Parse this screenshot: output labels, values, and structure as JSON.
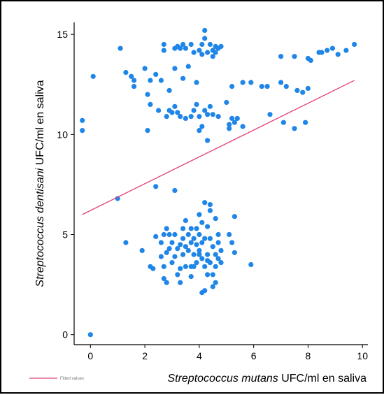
{
  "chart_data": {
    "type": "scatter",
    "title": "",
    "xlabel_italic": "Streptococcus mutans",
    "xlabel_rest": " UFC/ml en saliva",
    "ylabel_italic": "Streptococcus dentisani",
    "ylabel_rest": " UFC/ml en saliva",
    "xlim": [
      -0.6,
      10.2
    ],
    "ylim": [
      -0.5,
      15.6
    ],
    "xticks": [
      0,
      2,
      4,
      6,
      8,
      10
    ],
    "yticks": [
      0,
      5,
      10,
      15
    ],
    "grid": false,
    "legend_position": "bottom-left",
    "legend_label": "Fitted values",
    "point_color": "#1f86e8",
    "line_color": "#e0407a",
    "series": [
      {
        "type": "scatter",
        "points": [
          [
            0.0,
            0.0
          ],
          [
            -0.3,
            10.2
          ],
          [
            -0.3,
            10.7
          ],
          [
            0.1,
            12.9
          ],
          [
            1.0,
            6.8
          ],
          [
            1.1,
            14.3
          ],
          [
            1.3,
            13.1
          ],
          [
            1.5,
            12.9
          ],
          [
            1.6,
            12.4
          ],
          [
            1.6,
            12.7
          ],
          [
            2.0,
            13.3
          ],
          [
            2.1,
            12.0
          ],
          [
            2.1,
            10.2
          ],
          [
            2.2,
            12.7
          ],
          [
            2.2,
            11.5
          ],
          [
            2.4,
            7.4
          ],
          [
            2.4,
            13.0
          ],
          [
            2.5,
            11.2
          ],
          [
            2.6,
            12.7
          ],
          [
            2.7,
            14.5
          ],
          [
            2.7,
            14.2
          ],
          [
            2.8,
            10.9
          ],
          [
            2.9,
            11.2
          ],
          [
            2.9,
            12.2
          ],
          [
            3.0,
            11.1
          ],
          [
            3.1,
            11.4
          ],
          [
            3.1,
            14.3
          ],
          [
            3.1,
            13.3
          ],
          [
            3.2,
            14.4
          ],
          [
            3.2,
            11.1
          ],
          [
            3.3,
            14.3
          ],
          [
            3.3,
            10.9
          ],
          [
            3.4,
            12.8
          ],
          [
            3.4,
            14.5
          ],
          [
            3.5,
            10.8
          ],
          [
            3.5,
            14.3
          ],
          [
            3.6,
            13.4
          ],
          [
            3.7,
            14.5
          ],
          [
            3.7,
            10.9
          ],
          [
            3.8,
            11.2
          ],
          [
            3.8,
            14.1
          ],
          [
            3.9,
            12.6
          ],
          [
            3.9,
            11.5
          ],
          [
            4.0,
            14.2
          ],
          [
            4.0,
            10.9
          ],
          [
            4.0,
            10.2
          ],
          [
            4.1,
            14.5
          ],
          [
            4.1,
            10.4
          ],
          [
            4.1,
            14.0
          ],
          [
            4.2,
            14.8
          ],
          [
            4.2,
            11.2
          ],
          [
            4.2,
            15.2
          ],
          [
            4.3,
            14.1
          ],
          [
            4.3,
            11.0
          ],
          [
            4.3,
            9.7
          ],
          [
            4.4,
            14.5
          ],
          [
            4.4,
            11.4
          ],
          [
            4.5,
            13.9
          ],
          [
            4.5,
            14.2
          ],
          [
            4.5,
            11.0
          ],
          [
            4.6,
            14.4
          ],
          [
            4.6,
            14.1
          ],
          [
            4.7,
            10.9
          ],
          [
            4.7,
            14.3
          ],
          [
            4.8,
            14.4
          ],
          [
            5.0,
            11.6
          ],
          [
            5.1,
            10.5
          ],
          [
            5.1,
            10.3
          ],
          [
            5.2,
            12.4
          ],
          [
            5.2,
            10.8
          ],
          [
            5.3,
            10.6
          ],
          [
            5.4,
            10.8
          ],
          [
            5.6,
            10.4
          ],
          [
            5.6,
            12.6
          ],
          [
            5.9,
            12.6
          ],
          [
            6.3,
            12.4
          ],
          [
            6.5,
            12.4
          ],
          [
            6.6,
            11.0
          ],
          [
            7.0,
            13.9
          ],
          [
            7.0,
            12.6
          ],
          [
            7.1,
            10.6
          ],
          [
            7.2,
            12.4
          ],
          [
            7.5,
            10.3
          ],
          [
            7.5,
            13.9
          ],
          [
            7.6,
            12.2
          ],
          [
            7.8,
            12.1
          ],
          [
            7.9,
            10.6
          ],
          [
            8.0,
            12.3
          ],
          [
            8.0,
            13.8
          ],
          [
            8.1,
            13.7
          ],
          [
            8.4,
            14.1
          ],
          [
            8.5,
            14.1
          ],
          [
            8.7,
            14.2
          ],
          [
            8.9,
            14.3
          ],
          [
            9.1,
            14.0
          ],
          [
            9.4,
            14.2
          ],
          [
            9.7,
            14.5
          ],
          [
            1.3,
            4.6
          ],
          [
            1.9,
            4.2
          ],
          [
            2.2,
            3.4
          ],
          [
            2.3,
            3.3
          ],
          [
            2.4,
            4.9
          ],
          [
            2.6,
            4.6
          ],
          [
            2.6,
            3.9
          ],
          [
            2.7,
            5.0
          ],
          [
            2.7,
            3.4
          ],
          [
            2.7,
            2.8
          ],
          [
            2.8,
            2.6
          ],
          [
            2.8,
            5.3
          ],
          [
            2.8,
            4.1
          ],
          [
            2.9,
            4.3
          ],
          [
            2.9,
            5.0
          ],
          [
            3.0,
            3.6
          ],
          [
            3.0,
            4.6
          ],
          [
            3.1,
            7.2
          ],
          [
            3.1,
            5.0
          ],
          [
            3.1,
            3.9
          ],
          [
            3.2,
            4.3
          ],
          [
            3.2,
            3.0
          ],
          [
            3.3,
            2.6
          ],
          [
            3.3,
            4.5
          ],
          [
            3.3,
            3.3
          ],
          [
            3.4,
            5.3
          ],
          [
            3.4,
            4.8
          ],
          [
            3.4,
            4.0
          ],
          [
            3.5,
            5.7
          ],
          [
            3.5,
            4.4
          ],
          [
            3.5,
            3.4
          ],
          [
            3.6,
            5.0
          ],
          [
            3.6,
            4.2
          ],
          [
            3.7,
            3.4
          ],
          [
            3.7,
            5.3
          ],
          [
            3.7,
            4.6
          ],
          [
            3.7,
            2.9
          ],
          [
            3.8,
            4.0
          ],
          [
            3.8,
            3.4
          ],
          [
            3.8,
            4.8
          ],
          [
            3.9,
            5.3
          ],
          [
            3.9,
            4.5
          ],
          [
            3.9,
            3.6
          ],
          [
            4.0,
            4.0
          ],
          [
            4.0,
            5.0
          ],
          [
            4.0,
            6.0
          ],
          [
            4.0,
            4.2
          ],
          [
            4.1,
            3.8
          ],
          [
            4.1,
            4.6
          ],
          [
            4.1,
            5.6
          ],
          [
            4.1,
            2.1
          ],
          [
            4.2,
            3.4
          ],
          [
            4.2,
            4.8
          ],
          [
            4.2,
            6.6
          ],
          [
            4.2,
            2.2
          ],
          [
            4.3,
            4.0
          ],
          [
            4.3,
            5.4
          ],
          [
            4.3,
            3.7
          ],
          [
            4.3,
            3.0
          ],
          [
            4.4,
            6.2
          ],
          [
            4.4,
            3.6
          ],
          [
            4.4,
            4.8
          ],
          [
            4.4,
            6.5
          ],
          [
            4.5,
            4.4
          ],
          [
            4.5,
            2.4
          ],
          [
            4.5,
            3.0
          ],
          [
            4.6,
            5.8
          ],
          [
            4.6,
            4.0
          ],
          [
            4.6,
            3.4
          ],
          [
            4.6,
            2.6
          ],
          [
            4.7,
            5.0
          ],
          [
            4.7,
            3.8
          ],
          [
            4.7,
            4.6
          ],
          [
            4.8,
            3.6
          ],
          [
            4.8,
            4.2
          ],
          [
            5.1,
            5.0
          ],
          [
            5.2,
            4.6
          ],
          [
            5.3,
            5.9
          ],
          [
            5.3,
            4.1
          ],
          [
            5.9,
            3.5
          ]
        ]
      },
      {
        "type": "line",
        "name": "Fitted values",
        "points": [
          [
            -0.3,
            6.0
          ],
          [
            9.7,
            12.7
          ]
        ]
      }
    ]
  }
}
